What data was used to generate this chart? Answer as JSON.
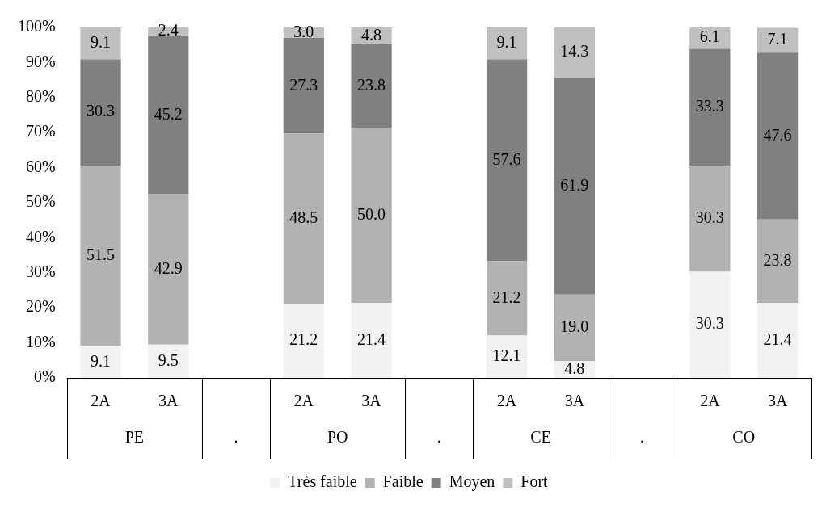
{
  "chart_data": {
    "type": "bar",
    "stacked": true,
    "categories": [
      "2A",
      "3A",
      null,
      "2A",
      "3A",
      null,
      "2A",
      "3A",
      null,
      "2A",
      "3A"
    ],
    "series": [
      {
        "name": "Très faible",
        "color": "#f2f2f2",
        "values": [
          9.1,
          9.5,
          null,
          21.2,
          21.4,
          null,
          12.1,
          4.8,
          null,
          30.3,
          21.4
        ],
        "value_labels": [
          "9.1",
          "9.5",
          null,
          "21.2",
          "21.4",
          null,
          "12.1",
          "4.8",
          null,
          "30.3",
          "21.4"
        ]
      },
      {
        "name": "Faible",
        "color": "#b2b2b2",
        "values": [
          51.5,
          42.9,
          null,
          48.5,
          50.0,
          null,
          21.2,
          19.0,
          null,
          30.3,
          23.8
        ],
        "value_labels": [
          "51.5",
          "42.9",
          null,
          "48.5",
          "50.0",
          null,
          "21.2",
          "19.0",
          null,
          "30.3",
          "23.8"
        ]
      },
      {
        "name": "Moyen",
        "color": "#808080",
        "values": [
          30.3,
          45.2,
          null,
          27.3,
          23.8,
          null,
          57.6,
          61.9,
          null,
          33.3,
          47.6
        ],
        "value_labels": [
          "30.3",
          "45.2",
          null,
          "27.3",
          "23.8",
          null,
          "57.6",
          "61.9",
          null,
          "33.3",
          "47.6"
        ]
      },
      {
        "name": "Fort",
        "color": "#c0c0c0",
        "values": [
          9.1,
          2.4,
          null,
          3.0,
          4.8,
          null,
          9.1,
          14.3,
          null,
          6.1,
          7.1
        ],
        "value_labels": [
          "9.1",
          "2.4",
          null,
          "3.0",
          "4.8",
          null,
          "9.1",
          "14.3",
          null,
          "6.1",
          "7.1"
        ]
      }
    ],
    "ylim": [
      0,
      100
    ],
    "yticks": [
      {
        "value": 0,
        "label": "0%"
      },
      {
        "value": 10,
        "label": "10%"
      },
      {
        "value": 20,
        "label": "20%"
      },
      {
        "value": 30,
        "label": "30%"
      },
      {
        "value": 40,
        "label": "40%"
      },
      {
        "value": 50,
        "label": "50%"
      },
      {
        "value": 60,
        "label": "60%"
      },
      {
        "value": 70,
        "label": "70%"
      },
      {
        "value": 80,
        "label": "80%"
      },
      {
        "value": 90,
        "label": "90%"
      },
      {
        "value": 100,
        "label": "100%"
      }
    ],
    "grid": false,
    "legend": "bottom",
    "annotations": [
      "PE",
      ".",
      "PO",
      ".",
      "CE",
      ".",
      "CO"
    ]
  }
}
